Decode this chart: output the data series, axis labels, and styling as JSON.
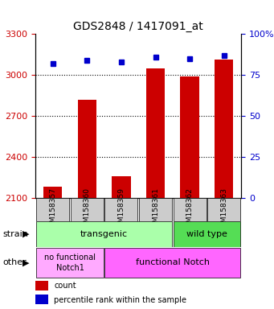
{
  "title": "GDS2848 / 1417091_at",
  "samples": [
    "GSM158357",
    "GSM158360",
    "GSM158359",
    "GSM158361",
    "GSM158362",
    "GSM158363"
  ],
  "counts": [
    2180,
    2820,
    2260,
    3050,
    2990,
    3110
  ],
  "percentiles": [
    82,
    84,
    83,
    86,
    85,
    87
  ],
  "ylim_left": [
    2100,
    3300
  ],
  "ylim_right": [
    0,
    100
  ],
  "yticks_left": [
    2100,
    2400,
    2700,
    3000,
    3300
  ],
  "yticks_right": [
    0,
    25,
    50,
    75,
    100
  ],
  "bar_color": "#cc0000",
  "dot_color": "#0000cc",
  "bar_bottom": 2100,
  "strain_labels": [
    {
      "text": "transgenic",
      "start": 0,
      "end": 3,
      "color": "#aaffaa"
    },
    {
      "text": "wild type",
      "start": 4,
      "end": 5,
      "color": "#55dd55"
    }
  ],
  "other_labels": [
    {
      "text": "no functional\nNotch1",
      "start": 0,
      "end": 1,
      "color": "#ffaaff"
    },
    {
      "text": "functional Notch",
      "start": 2,
      "end": 5,
      "color": "#ff66ff"
    }
  ],
  "tick_bg_color": "#cccccc",
  "legend_count_color": "#cc0000",
  "legend_dot_color": "#0000cc",
  "left_label_color": "#cc0000",
  "right_label_color": "#0000cc"
}
